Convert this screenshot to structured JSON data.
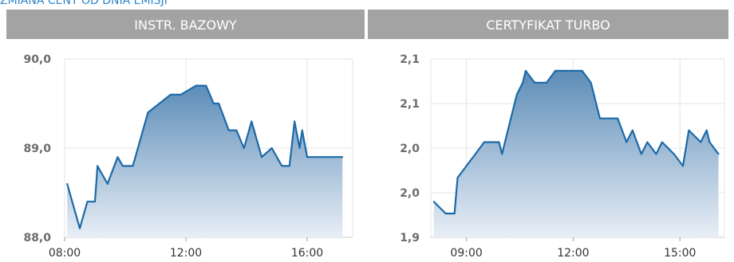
{
  "page_title": "ZMIANA CENY OD DNIA EMISJI",
  "colors": {
    "header_bg": "#a3a3a3",
    "line": "#1b6aa8",
    "fill_top": "#5d8db8",
    "fill_bottom": "#e8eef6",
    "grid": "#e5e5e5"
  },
  "chart_data": [
    {
      "type": "area",
      "title": "INSTR. BAZOWY",
      "x_ticks": [
        "08:00",
        "12:00",
        "16:00"
      ],
      "y_ticks": [
        "88,0",
        "89,0",
        "90,0"
      ],
      "xlim": [
        "08:00",
        "17:30"
      ],
      "ylim": [
        88.0,
        90.0
      ],
      "x": [
        "08:05",
        "08:30",
        "08:45",
        "09:00",
        "09:05",
        "09:25",
        "09:45",
        "09:55",
        "10:15",
        "10:30",
        "10:45",
        "11:30",
        "11:50",
        "12:20",
        "12:40",
        "12:55",
        "13:05",
        "13:25",
        "13:40",
        "13:55",
        "14:10",
        "14:30",
        "14:50",
        "15:10",
        "15:25",
        "15:35",
        "15:45",
        "15:50",
        "16:00",
        "17:10"
      ],
      "values": [
        88.6,
        88.1,
        88.4,
        88.4,
        88.8,
        88.6,
        88.9,
        88.8,
        88.8,
        89.1,
        89.4,
        89.6,
        89.6,
        89.7,
        89.7,
        89.5,
        89.5,
        89.2,
        89.2,
        89.0,
        89.3,
        88.9,
        89.0,
        88.8,
        88.8,
        89.3,
        89.0,
        89.2,
        88.9,
        88.9
      ],
      "grid": true
    },
    {
      "type": "area",
      "title": "CERTYFIKAT TURBO",
      "x_ticks": [
        "09:00",
        "12:00",
        "15:00"
      ],
      "y_ticks": [
        "1,9",
        "2,0",
        "2,0",
        "2,1",
        "2,1"
      ],
      "xlim": [
        "08:00",
        "16:15"
      ],
      "ylim": [
        1.94,
        2.09
      ],
      "x": [
        "08:05",
        "08:25",
        "08:40",
        "08:45",
        "09:00",
        "09:15",
        "09:30",
        "09:45",
        "09:55",
        "10:00",
        "10:10",
        "10:25",
        "10:35",
        "10:40",
        "10:55",
        "11:10",
        "11:15",
        "11:30",
        "11:40",
        "12:00",
        "12:15",
        "12:30",
        "12:45",
        "13:05",
        "13:15",
        "13:30",
        "13:40",
        "13:55",
        "14:05",
        "14:20",
        "14:30",
        "14:50",
        "15:05",
        "15:15",
        "15:35",
        "15:45",
        "15:50",
        "16:05"
      ],
      "values": [
        1.97,
        1.96,
        1.96,
        1.99,
        2.0,
        2.01,
        2.02,
        2.02,
        2.02,
        2.01,
        2.03,
        2.06,
        2.07,
        2.08,
        2.07,
        2.07,
        2.07,
        2.08,
        2.08,
        2.08,
        2.08,
        2.07,
        2.04,
        2.04,
        2.04,
        2.02,
        2.03,
        2.01,
        2.02,
        2.01,
        2.02,
        2.01,
        2.0,
        2.03,
        2.02,
        2.03,
        2.02,
        2.01
      ],
      "grid": true
    }
  ]
}
